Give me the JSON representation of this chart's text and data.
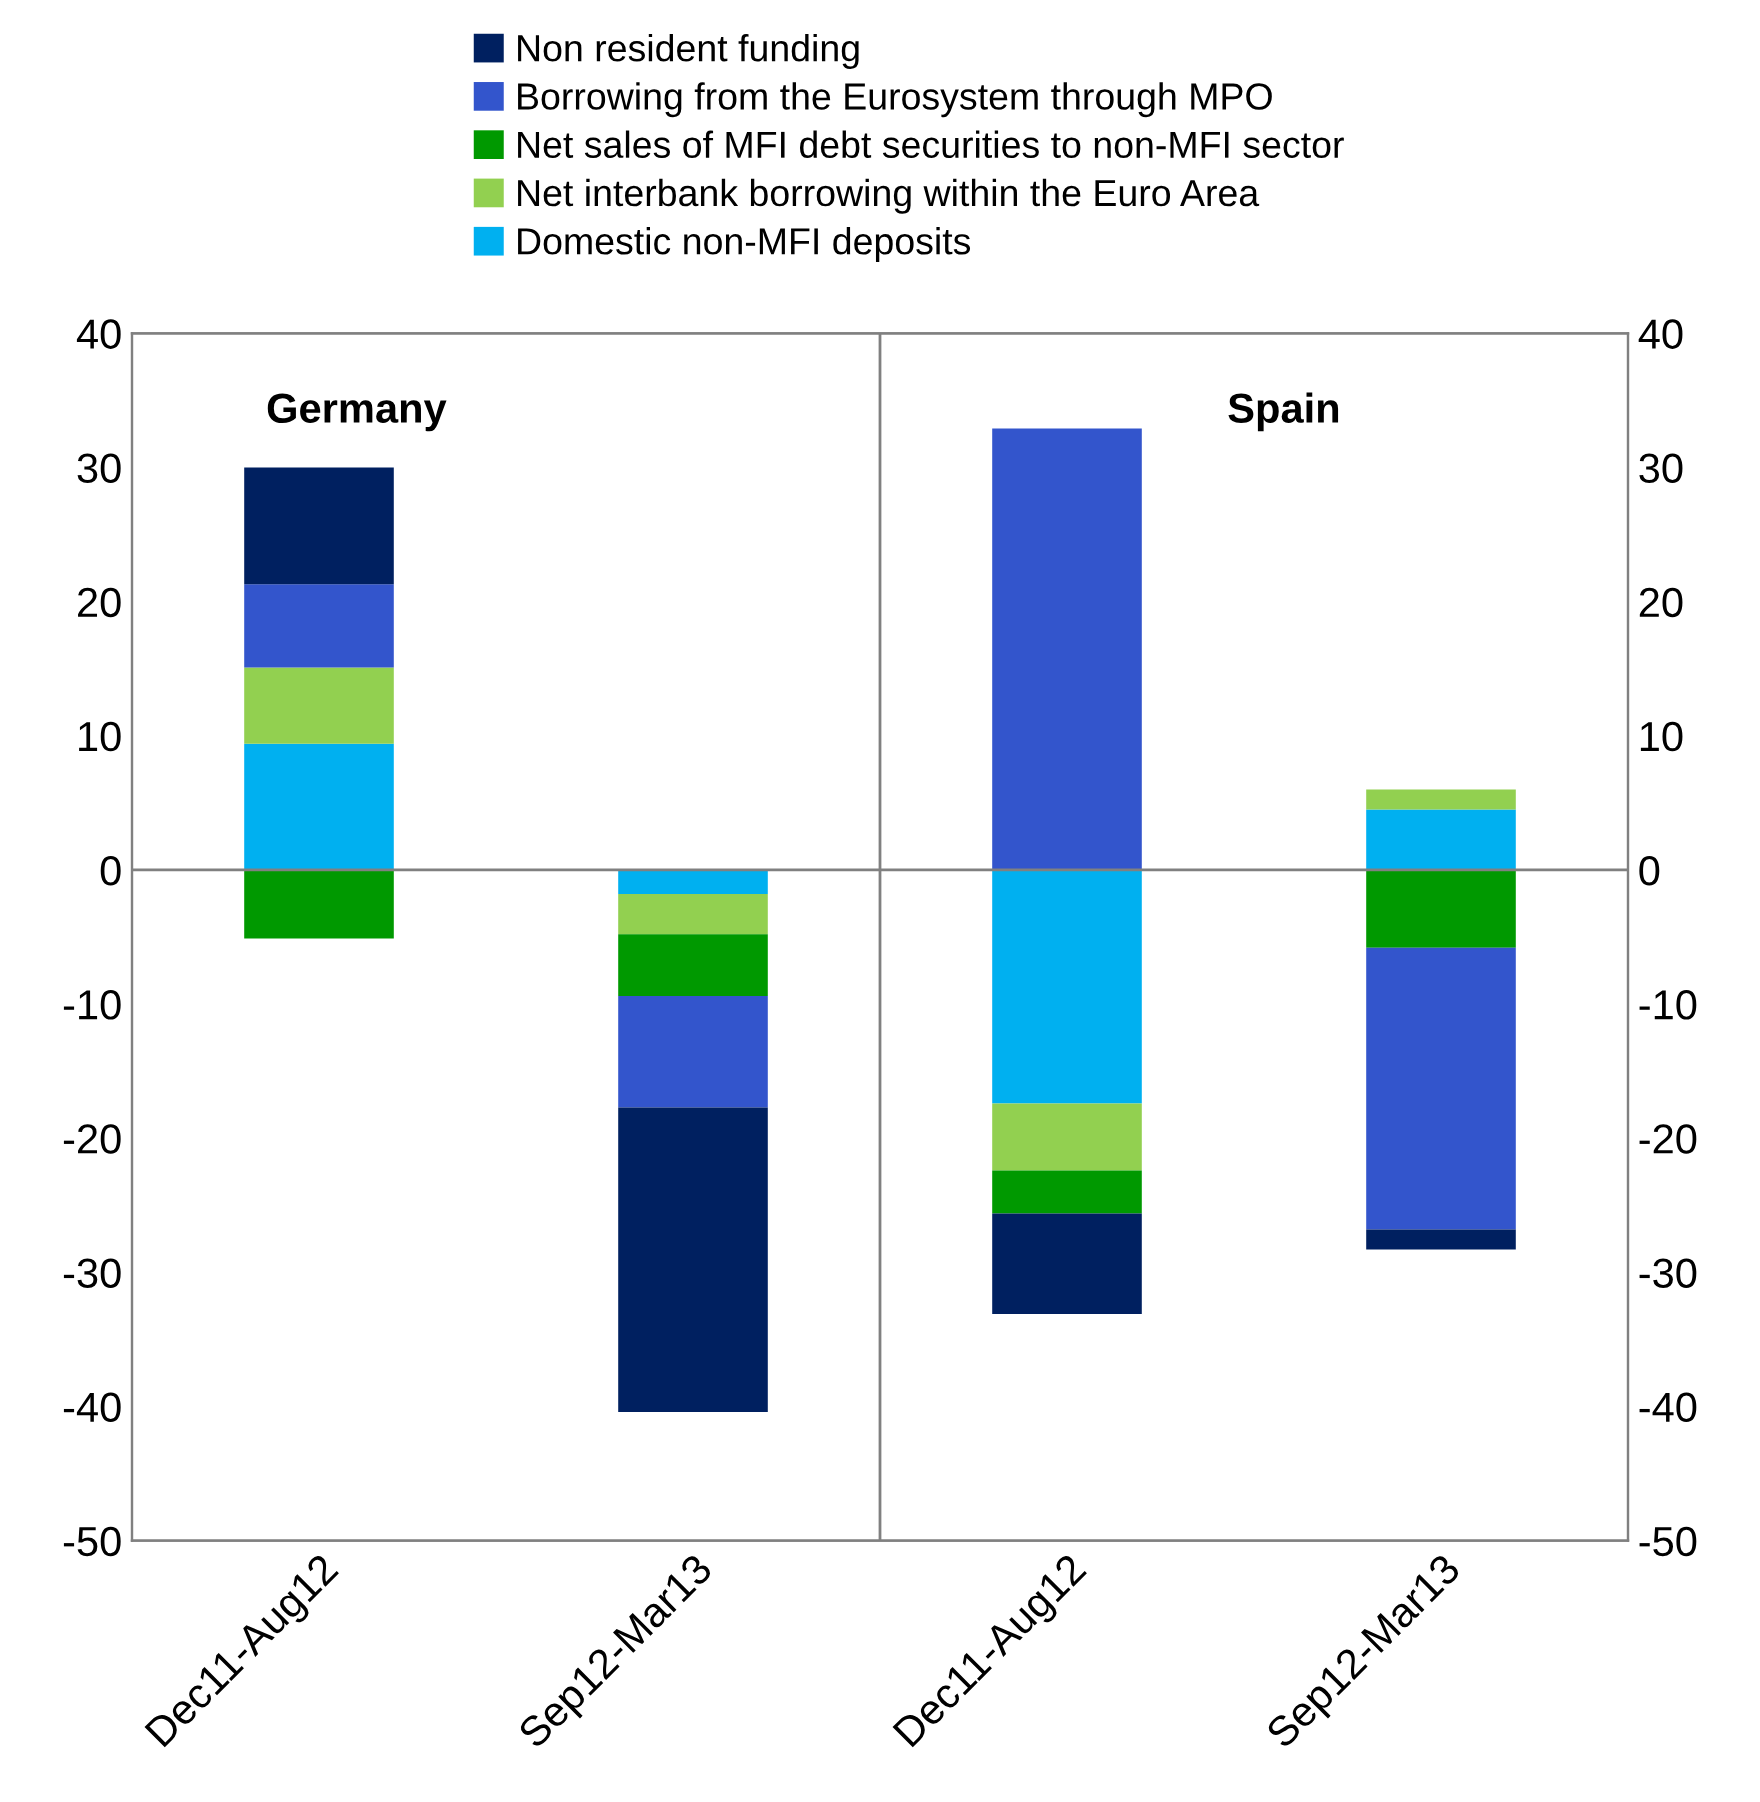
{
  "chart_data": {
    "type": "bar",
    "stacked": true,
    "categories": [
      "Dec11-Aug12",
      "Sep12-Mar13",
      "Dec11-Aug12",
      "Sep12-Mar13"
    ],
    "series": [
      {
        "name": "Domestic non-MFI deposits",
        "color": "#00b0f0",
        "values": [
          9.4,
          -1.8,
          -17.4,
          4.5
        ]
      },
      {
        "name": "Net interbank borrowing within the Euro Area",
        "color": "#92d050",
        "values": [
          5.7,
          -3.0,
          -5.0,
          1.5
        ]
      },
      {
        "name": "Net sales of MFI debt securities to non-MFI sector",
        "color": "#009900",
        "values": [
          -5.1,
          -4.6,
          -3.2,
          -5.8
        ]
      },
      {
        "name": "Borrowing from the Eurosystem through MPO",
        "color": "#3355cc",
        "values": [
          6.2,
          -8.3,
          32.9,
          -21.0
        ]
      },
      {
        "name": "Non resident funding",
        "color": "#002060",
        "values": [
          8.7,
          -22.7,
          -7.5,
          -1.5
        ]
      }
    ],
    "ylim": [
      -50,
      40
    ],
    "yticks": [
      -50,
      -40,
      -30,
      -20,
      -10,
      0,
      10,
      20,
      30,
      40
    ],
    "y2lim": [
      -50,
      40
    ],
    "y2ticks": [
      -50,
      -40,
      -30,
      -20,
      -10,
      0,
      10,
      20,
      30,
      40
    ],
    "annotations": [
      "Germany",
      "Spain"
    ],
    "ref_lines": [
      {
        "axis": "y",
        "value": 0,
        "color": "#808080"
      }
    ],
    "grid": false,
    "legend": "top"
  }
}
